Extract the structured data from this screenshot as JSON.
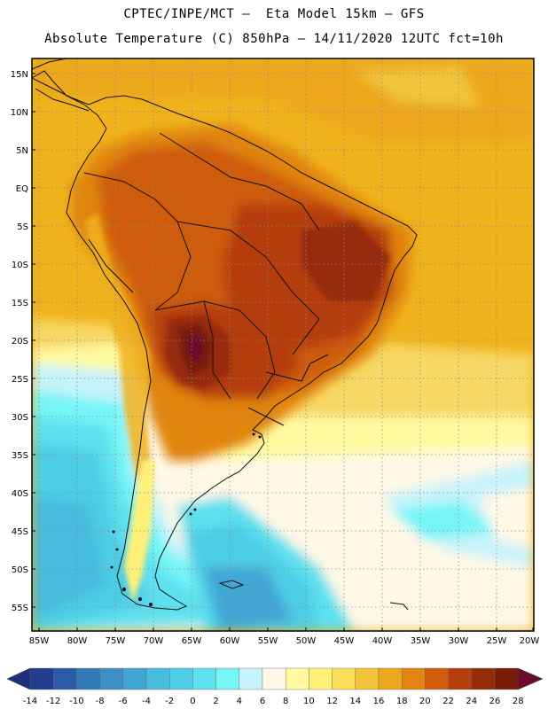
{
  "title_line1": "CPTEC/INPE/MCT –  Eta Model 15km – GFS",
  "title_line2": "Absolute Temperature (C) 850hPa – 14/11/2020 12UTC fct=10h",
  "lat_labels": [
    "15N",
    "10N",
    "5N",
    "EQ",
    "5S",
    "10S",
    "15S",
    "20S",
    "25S",
    "30S",
    "35S",
    "40S",
    "45S",
    "50S",
    "55S"
  ],
  "lon_labels": [
    "85W",
    "80W",
    "75W",
    "70W",
    "65W",
    "60W",
    "55W",
    "50W",
    "45W",
    "40W",
    "35W",
    "30W",
    "25W",
    "20W"
  ],
  "colorbar_labels": [
    "-14",
    "-12",
    "-10",
    "-8",
    "-6",
    "-4",
    "-2",
    "0",
    "2",
    "4",
    "6",
    "8",
    "10",
    "12",
    "14",
    "16",
    "18",
    "20",
    "22",
    "24",
    "26",
    "28"
  ],
  "colorbar_colors": [
    "#213d8f",
    "#2a5aa8",
    "#3279b9",
    "#3c8fc7",
    "#42a6d4",
    "#47bcde",
    "#4dcde6",
    "#5fe0ee",
    "#76f5f6",
    "#c7f3fb",
    "#fff8e6",
    "#fffaa0",
    "#fff078",
    "#f9de5a",
    "#f1c43a",
    "#eca71f",
    "#e18410",
    "#cf5b0b",
    "#b53e0a",
    "#962c07",
    "#7a1d08"
  ],
  "colorbar_under_color": "#1e2f7a",
  "colorbar_over_color": "#6b0b2a"
}
